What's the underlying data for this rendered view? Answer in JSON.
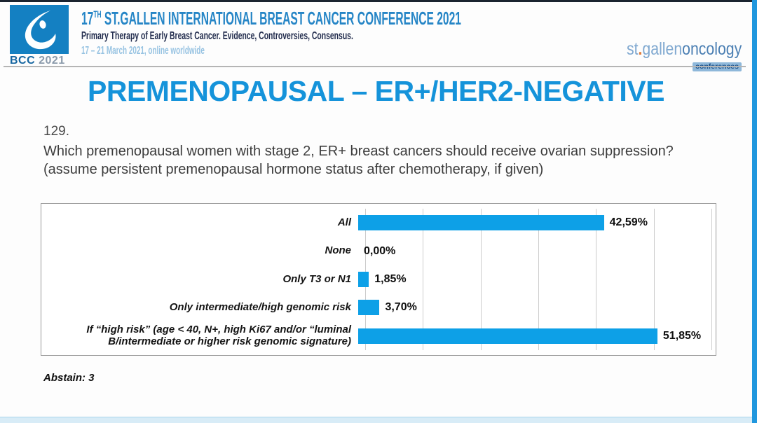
{
  "header": {
    "logo": {
      "bcc": "BCC",
      "year": "2021"
    },
    "title_num": "17",
    "title_sup": "TH",
    "title_rest": " ST.GALLEN INTERNATIONAL BREAST CANCER CONFERENCE 2021",
    "subtitle": "Primary Therapy of Early Breast Cancer. Evidence, Controversies, Consensus.",
    "dates": "17 – 21 March 2021, online worldwide",
    "right_logo": {
      "st": "st",
      "dot": ".",
      "gallen": "gallen",
      "oncology": "oncology",
      "conferences": "conferences"
    }
  },
  "slide": {
    "title": "PREMENOPAUSAL – ER+/HER2-NEGATIVE",
    "question_number": "129.",
    "question": "Which premenopausal women with stage 2, ER+ breast cancers should receive ovarian suppression? (assume persistent premenopausal hormone status after chemotherapy, if given)",
    "abstain": "Abstain: 3"
  },
  "chart_data": {
    "type": "bar",
    "orientation": "horizontal",
    "title": "",
    "categories": [
      "All",
      "None",
      "Only T3 or N1",
      "Only intermediate/high genomic risk",
      "If “high risk” (age < 40, N+, high Ki67 and/or “luminal B/intermediate or higher risk genomic signature)"
    ],
    "values": [
      42.59,
      0.0,
      1.85,
      3.7,
      51.85
    ],
    "value_labels": [
      "42,59%",
      "0,00%",
      "1,85%",
      "3,70%",
      "51,85%"
    ],
    "xlim": [
      0,
      60
    ],
    "gridline_interval": 10,
    "grid": true,
    "legend": false,
    "bar_color": "#0da0e7"
  },
  "colors": {
    "slide_title": "#1593da",
    "header_title": "#2585c6",
    "bar_blue": "#0da0e7",
    "right_edge_bar": "#2097de",
    "bottom_strip": "#d8ecf7"
  }
}
